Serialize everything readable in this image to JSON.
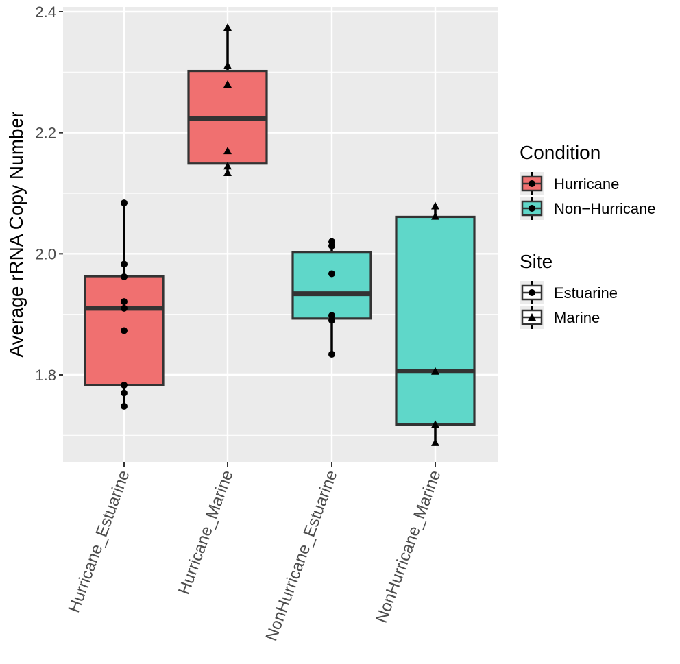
{
  "chart_data": {
    "type": "box",
    "title": "",
    "xlabel": "",
    "ylabel": "Average rRNA Copy Number",
    "ylim": [
      1.65,
      2.4
    ],
    "yticks": [
      1.8,
      2.0,
      2.2,
      2.4
    ],
    "ytick_labels": [
      "1.8",
      "2.0",
      "2.2",
      "2.4"
    ],
    "grid": true,
    "categories": [
      "Hurricane_Estuarine",
      "Hurricane_Marine",
      "NonHurricane_Estuarine",
      "NonHurricane_Marine"
    ],
    "boxes": [
      {
        "category": "Hurricane_Estuarine",
        "condition": "Hurricane",
        "site": "Estuarine",
        "q1": 1.783,
        "median": 1.91,
        "q3": 1.963,
        "whisker_low": 1.748,
        "whisker_high": 2.084,
        "points": [
          2.084,
          1.983,
          1.962,
          1.921,
          1.91,
          1.873,
          1.783,
          1.77,
          1.748
        ]
      },
      {
        "category": "Hurricane_Marine",
        "condition": "Hurricane",
        "site": "Marine",
        "q1": 2.149,
        "median": 2.224,
        "q3": 2.302,
        "whisker_low": 2.134,
        "whisker_high": 2.374,
        "points": [
          2.374,
          2.311,
          2.28,
          2.17,
          2.145,
          2.134
        ]
      },
      {
        "category": "NonHurricane_Estuarine",
        "condition": "Non-Hurricane",
        "site": "Estuarine",
        "q1": 1.893,
        "median": 1.934,
        "q3": 2.003,
        "whisker_low": 1.834,
        "whisker_high": 2.02,
        "points": [
          2.02,
          2.013,
          1.967,
          1.898,
          1.89,
          1.834
        ]
      },
      {
        "category": "NonHurricane_Marine",
        "condition": "Non-Hurricane",
        "site": "Marine",
        "q1": 1.718,
        "median": 1.806,
        "q3": 2.061,
        "whisker_low": 1.688,
        "whisker_high": 2.079,
        "points": [
          2.079,
          2.062,
          1.806,
          1.718,
          1.688
        ]
      }
    ],
    "legend": {
      "placement": "right",
      "condition_title": "Condition",
      "condition_items": [
        {
          "label": "Hurricane",
          "color": "#F07070"
        },
        {
          "label": "Non−Hurricane",
          "color": "#5FD7C9"
        }
      ],
      "site_title": "Site",
      "site_items": [
        {
          "label": "Estuarine",
          "shape": "circle"
        },
        {
          "label": "Marine",
          "shape": "triangle"
        }
      ]
    }
  }
}
